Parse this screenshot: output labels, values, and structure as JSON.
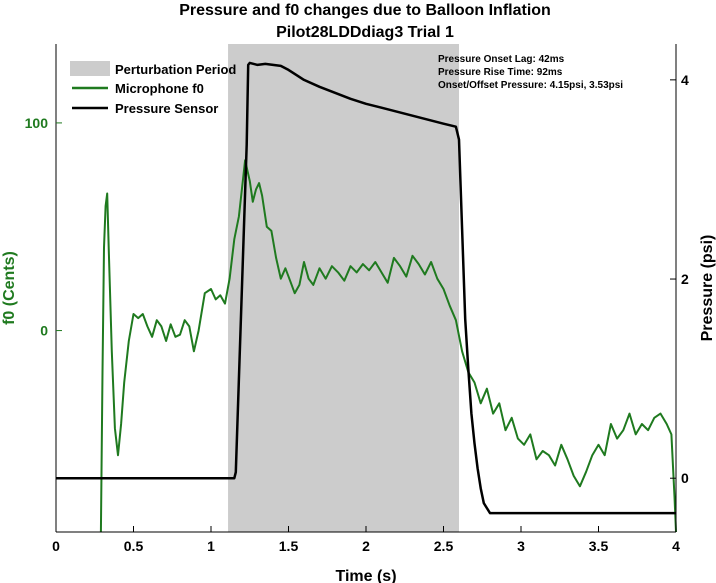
{
  "chart_data": {
    "type": "line",
    "title": "Pressure and f0 changes due to Balloon Inflation",
    "subtitle": "Pilot28LDDdiag3 Trial 1",
    "xlabel": "Time (s)",
    "ylabel_left": "f0 (Cents)",
    "ylabel_right": "Pressure (psi)",
    "xlim": [
      0,
      4
    ],
    "ylim_left": [
      -97,
      138
    ],
    "ylim_right": [
      -0.54,
      4.36
    ],
    "x_ticks": [
      "0",
      "0.5",
      "1",
      "1.5",
      "2",
      "2.5",
      "3",
      "3.5",
      "4"
    ],
    "y_left_ticks": [
      "0",
      "100"
    ],
    "y_right_ticks": [
      "0",
      "2",
      "4"
    ],
    "colors": {
      "f0": "#1f7a1f",
      "pressure": "#000000",
      "perturbation": "#cccccc",
      "left_axis": "#1f7a1f"
    },
    "perturbation": {
      "label": "Perturbation Period",
      "start": 1.11,
      "end": 2.6
    },
    "legend": {
      "position": "top-left",
      "items": [
        "Perturbation Period",
        "Microphone f0",
        "Pressure Sensor"
      ]
    },
    "annotations": [
      "Pressure Onset Lag: 42ms",
      "Pressure Rise Time: 92ms",
      "Onset/Offset Pressure: 4.15psi, 3.53psi"
    ],
    "series": [
      {
        "name": "Microphone f0",
        "axis": "left",
        "x": [
          0.29,
          0.3,
          0.31,
          0.32,
          0.33,
          0.34,
          0.36,
          0.38,
          0.4,
          0.42,
          0.44,
          0.47,
          0.5,
          0.53,
          0.56,
          0.59,
          0.62,
          0.65,
          0.68,
          0.71,
          0.74,
          0.77,
          0.8,
          0.83,
          0.86,
          0.89,
          0.92,
          0.96,
          1.0,
          1.03,
          1.06,
          1.09,
          1.12,
          1.15,
          1.18,
          1.22,
          1.25,
          1.27,
          1.29,
          1.31,
          1.33,
          1.36,
          1.39,
          1.42,
          1.45,
          1.48,
          1.51,
          1.54,
          1.57,
          1.6,
          1.63,
          1.66,
          1.7,
          1.74,
          1.78,
          1.82,
          1.86,
          1.9,
          1.94,
          1.98,
          2.02,
          2.06,
          2.1,
          2.14,
          2.18,
          2.22,
          2.26,
          2.3,
          2.34,
          2.38,
          2.42,
          2.46,
          2.5,
          2.54,
          2.58,
          2.62,
          2.66,
          2.7,
          2.74,
          2.78,
          2.82,
          2.86,
          2.9,
          2.94,
          2.98,
          3.02,
          3.06,
          3.1,
          3.14,
          3.18,
          3.22,
          3.26,
          3.3,
          3.34,
          3.38,
          3.42,
          3.46,
          3.5,
          3.54,
          3.58,
          3.62,
          3.66,
          3.7,
          3.74,
          3.78,
          3.82,
          3.86,
          3.9,
          3.94,
          3.97,
          3.99,
          4.0
        ],
        "values": [
          -97,
          -20,
          40,
          60,
          66,
          40,
          -10,
          -47,
          -60,
          -45,
          -25,
          -5,
          8,
          6,
          8,
          2,
          -3,
          5,
          2,
          -5,
          3,
          -3,
          -2,
          5,
          2,
          -10,
          0,
          18,
          20,
          15,
          17,
          13,
          25,
          44,
          55,
          82,
          72,
          62,
          68,
          71,
          65,
          50,
          48,
          35,
          25,
          30,
          24,
          18,
          22,
          33,
          25,
          22,
          30,
          25,
          31,
          28,
          24,
          31,
          28,
          32,
          29,
          33,
          28,
          23,
          35,
          31,
          26,
          36,
          32,
          27,
          33,
          25,
          20,
          12,
          5,
          -10,
          -20,
          -25,
          -35,
          -28,
          -40,
          -35,
          -48,
          -42,
          -52,
          -55,
          -50,
          -62,
          -58,
          -60,
          -65,
          -55,
          -62,
          -70,
          -75,
          -68,
          -60,
          -55,
          -60,
          -45,
          -52,
          -48,
          -40,
          -50,
          -45,
          -48,
          -42,
          -40,
          -45,
          -50,
          -80,
          -97
        ]
      },
      {
        "name": "Pressure Sensor",
        "axis": "right",
        "x": [
          0,
          1.15,
          1.16,
          1.23,
          1.24,
          1.25,
          1.3,
          1.35,
          1.4,
          1.45,
          1.5,
          1.55,
          1.6,
          1.7,
          1.8,
          1.9,
          2.0,
          2.1,
          2.2,
          2.3,
          2.4,
          2.5,
          2.58,
          2.6,
          2.62,
          2.64,
          2.66,
          2.68,
          2.7,
          2.72,
          2.74,
          2.76,
          2.78,
          2.8,
          3.0,
          3.5,
          4.0
        ],
        "values": [
          0,
          0,
          0.06,
          3.35,
          4.15,
          4.17,
          4.15,
          4.16,
          4.15,
          4.14,
          4.1,
          4.05,
          4.0,
          3.93,
          3.87,
          3.81,
          3.76,
          3.72,
          3.68,
          3.64,
          3.6,
          3.56,
          3.53,
          3.4,
          2.5,
          1.6,
          1.1,
          0.65,
          0.35,
          0.1,
          -0.1,
          -0.25,
          -0.3,
          -0.35,
          -0.35,
          -0.35,
          -0.35
        ]
      }
    ]
  }
}
